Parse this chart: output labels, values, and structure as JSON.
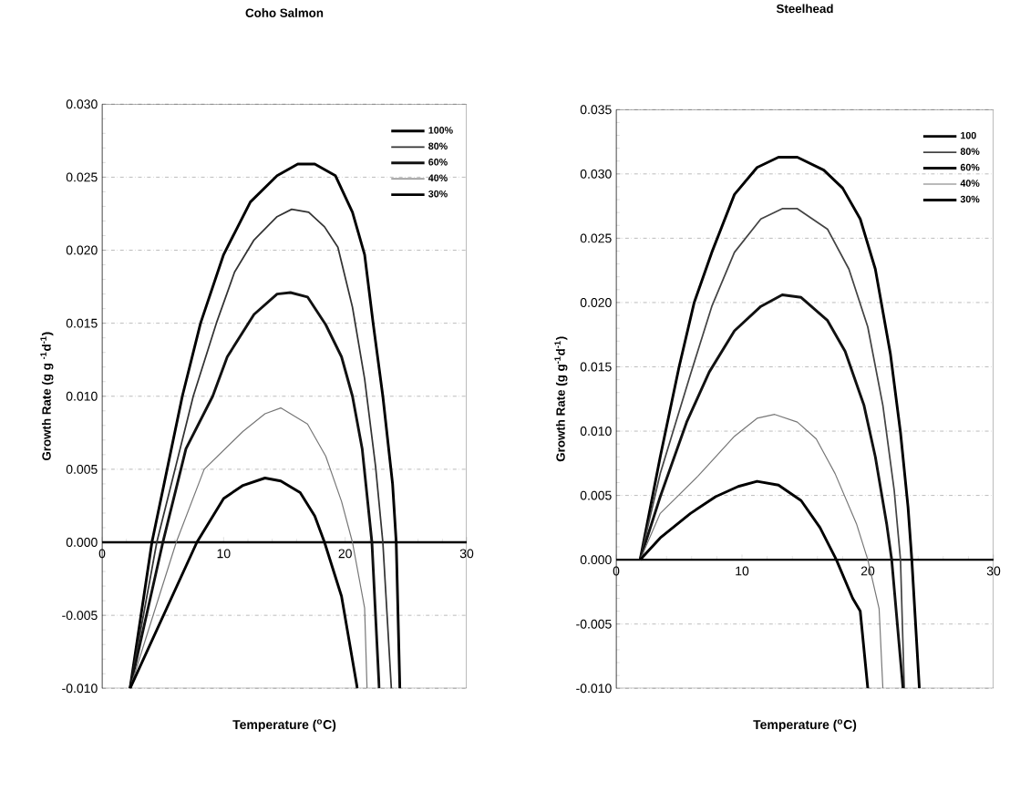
{
  "chart_data": [
    {
      "type": "line",
      "title": "Coho Salmon",
      "xlabel": "Temperature ($^{o}$C)",
      "ylabel": "Growth Rate (g g $^{-1}$d$^{-1}$)",
      "xlim": [
        0,
        30
      ],
      "ylim": [
        -0.01,
        0.03
      ],
      "xticks": [
        0,
        10,
        20,
        30
      ],
      "yticks": [
        {
          "value": -0.01,
          "label": "-0.010"
        },
        {
          "value": -0.005,
          "label": "-0.005"
        },
        {
          "value": 0,
          "label": "0.000"
        },
        {
          "value": 0.005,
          "label": "0.005"
        },
        {
          "value": 0.01,
          "label": "0.010"
        },
        {
          "value": 0.015,
          "label": "0.015"
        },
        {
          "value": 0.02,
          "label": "0.020"
        },
        {
          "value": 0.025,
          "label": "0.025"
        },
        {
          "value": 0.03,
          "label": "0.030"
        }
      ],
      "grid": "y",
      "legend": "top right",
      "marker": "none",
      "series": [
        {
          "name": "100%",
          "color": "#000000",
          "x": [
            2.3,
            4.1,
            6.6,
            8.1,
            10,
            12.2,
            14.4,
            16.1,
            17.5,
            19.2,
            20.6,
            21.6,
            22.3,
            23.1,
            23.9,
            24.2,
            24.5
          ],
          "values": [
            -0.01,
            0,
            0.01,
            0.015,
            0.0197,
            0.0233,
            0.0251,
            0.0259,
            0.0259,
            0.0251,
            0.0226,
            0.0197,
            0.015,
            0.01,
            0.004,
            0,
            -0.01
          ]
        },
        {
          "name": "80%",
          "color": "#333333",
          "x": [
            2.3,
            4.5,
            7.5,
            9.4,
            10.9,
            12.5,
            14.4,
            15.6,
            17.0,
            18.3,
            19.4,
            20.6,
            21.6,
            22.5,
            23.1,
            23.8
          ],
          "values": [
            -0.01,
            0,
            0.01,
            0.015,
            0.0185,
            0.0207,
            0.0223,
            0.0228,
            0.0226,
            0.0216,
            0.0202,
            0.0161,
            0.0112,
            0.0052,
            0,
            -0.01
          ]
        },
        {
          "name": "60%",
          "color": "#111111",
          "x": [
            2.3,
            5.0,
            6.9,
            9.1,
            10.3,
            12.5,
            14.4,
            15.5,
            16.9,
            18.4,
            19.7,
            20.6,
            21.4,
            22.2,
            22.8
          ],
          "values": [
            -0.01,
            0,
            0.0064,
            0.01,
            0.0127,
            0.0156,
            0.017,
            0.0171,
            0.0168,
            0.0149,
            0.0127,
            0.01,
            0.0064,
            0,
            -0.01
          ]
        },
        {
          "name": "40%",
          "color": "#777777",
          "x": [
            2.3,
            6.1,
            8.4,
            11.6,
            13.4,
            14.7,
            16.9,
            18.4,
            19.7,
            20.6,
            21.6,
            21.8
          ],
          "values": [
            -0.01,
            0,
            0.005,
            0.0076,
            0.0088,
            0.0092,
            0.0081,
            0.0059,
            0.0028,
            0,
            -0.0045,
            -0.01
          ]
        },
        {
          "name": "30%",
          "color": "#000000",
          "x": [
            2.3,
            7.8,
            10,
            11.6,
            13.4,
            14.7,
            16.3,
            17.5,
            18.3,
            19.7,
            21.0
          ],
          "values": [
            -0.01,
            0,
            0.003,
            0.0039,
            0.0044,
            0.0042,
            0.0034,
            0.0018,
            0,
            -0.0037,
            -0.01
          ]
        }
      ]
    },
    {
      "type": "line",
      "title": "Steelhead",
      "xlabel": "Temperature ($^{o}$C)",
      "ylabel": "Growth Rate (g g$^{-1}$d$^{-1}$)",
      "xlim": [
        0,
        30
      ],
      "ylim": [
        -0.01,
        0.035
      ],
      "xticks": [
        0,
        10,
        20,
        30
      ],
      "yticks": [
        {
          "value": -0.01,
          "label": "-0.010"
        },
        {
          "value": -0.005,
          "label": "-0.005"
        },
        {
          "value": 0,
          "label": "0.000"
        },
        {
          "value": 0.005,
          "label": "0.005"
        },
        {
          "value": 0.01,
          "label": "0.010"
        },
        {
          "value": 0.015,
          "label": "0.015"
        },
        {
          "value": 0.02,
          "label": "0.020"
        },
        {
          "value": 0.025,
          "label": "0.025"
        },
        {
          "value": 0.03,
          "label": "0.030"
        },
        {
          "value": 0.035,
          "label": "0.035"
        }
      ],
      "grid": "y",
      "legend": "top right",
      "marker": "none",
      "series": [
        {
          "name": "100",
          "color": "#000000",
          "x": [
            1.9,
            3.5,
            5,
            6.2,
            7.6,
            9.4,
            11.2,
            12.9,
            14.4,
            16.5,
            18,
            19.4,
            20.6,
            21.8,
            22.6,
            23.2,
            23.5,
            24.1
          ],
          "values": [
            0,
            0.008,
            0.015,
            0.02,
            0.0239,
            0.0284,
            0.0305,
            0.0313,
            0.0313,
            0.0303,
            0.0289,
            0.0265,
            0.0226,
            0.016,
            0.0099,
            0.0041,
            0,
            -0.01
          ]
        },
        {
          "name": "80%",
          "color": "#444444",
          "x": [
            1.9,
            3.5,
            5.9,
            7.6,
            9.4,
            11.5,
            13.2,
            14.4,
            16.8,
            18.5,
            20,
            21.2,
            22.1,
            22.6,
            22.9
          ],
          "values": [
            0,
            0.0067,
            0.0144,
            0.0197,
            0.0239,
            0.0265,
            0.0273,
            0.0273,
            0.0257,
            0.0226,
            0.0181,
            0.012,
            0.0054,
            0,
            -0.01
          ]
        },
        {
          "name": "60%",
          "color": "#111111",
          "x": [
            1.9,
            3.5,
            5.6,
            7.4,
            9.4,
            11.5,
            13.2,
            14.7,
            16.8,
            18.2,
            19.7,
            20.6,
            21.5,
            21.9,
            22.8
          ],
          "values": [
            0,
            0.0049,
            0.0107,
            0.0146,
            0.0178,
            0.0197,
            0.0206,
            0.0204,
            0.0186,
            0.0162,
            0.012,
            0.008,
            0.0028,
            0,
            -0.01
          ]
        },
        {
          "name": "40%",
          "color": "#777777",
          "x": [
            1.9,
            3.5,
            6.5,
            9.4,
            11.2,
            12.6,
            14.4,
            15.9,
            17.4,
            19.1,
            20,
            20.9,
            21.2
          ],
          "values": [
            0,
            0.0036,
            0.0065,
            0.0096,
            0.011,
            0.0113,
            0.0107,
            0.0094,
            0.0067,
            0.0028,
            0,
            -0.0038,
            -0.01
          ]
        },
        {
          "name": "30%",
          "color": "#000000",
          "x": [
            1.9,
            3.5,
            5.9,
            7.9,
            9.7,
            11.2,
            12.9,
            14.7,
            16.2,
            17.5,
            18.8,
            19.4,
            20
          ],
          "values": [
            0,
            0.0017,
            0.0036,
            0.0049,
            0.0057,
            0.0061,
            0.0058,
            0.0046,
            0.0025,
            0,
            -0.003,
            -0.004,
            -0.01
          ]
        }
      ]
    }
  ]
}
